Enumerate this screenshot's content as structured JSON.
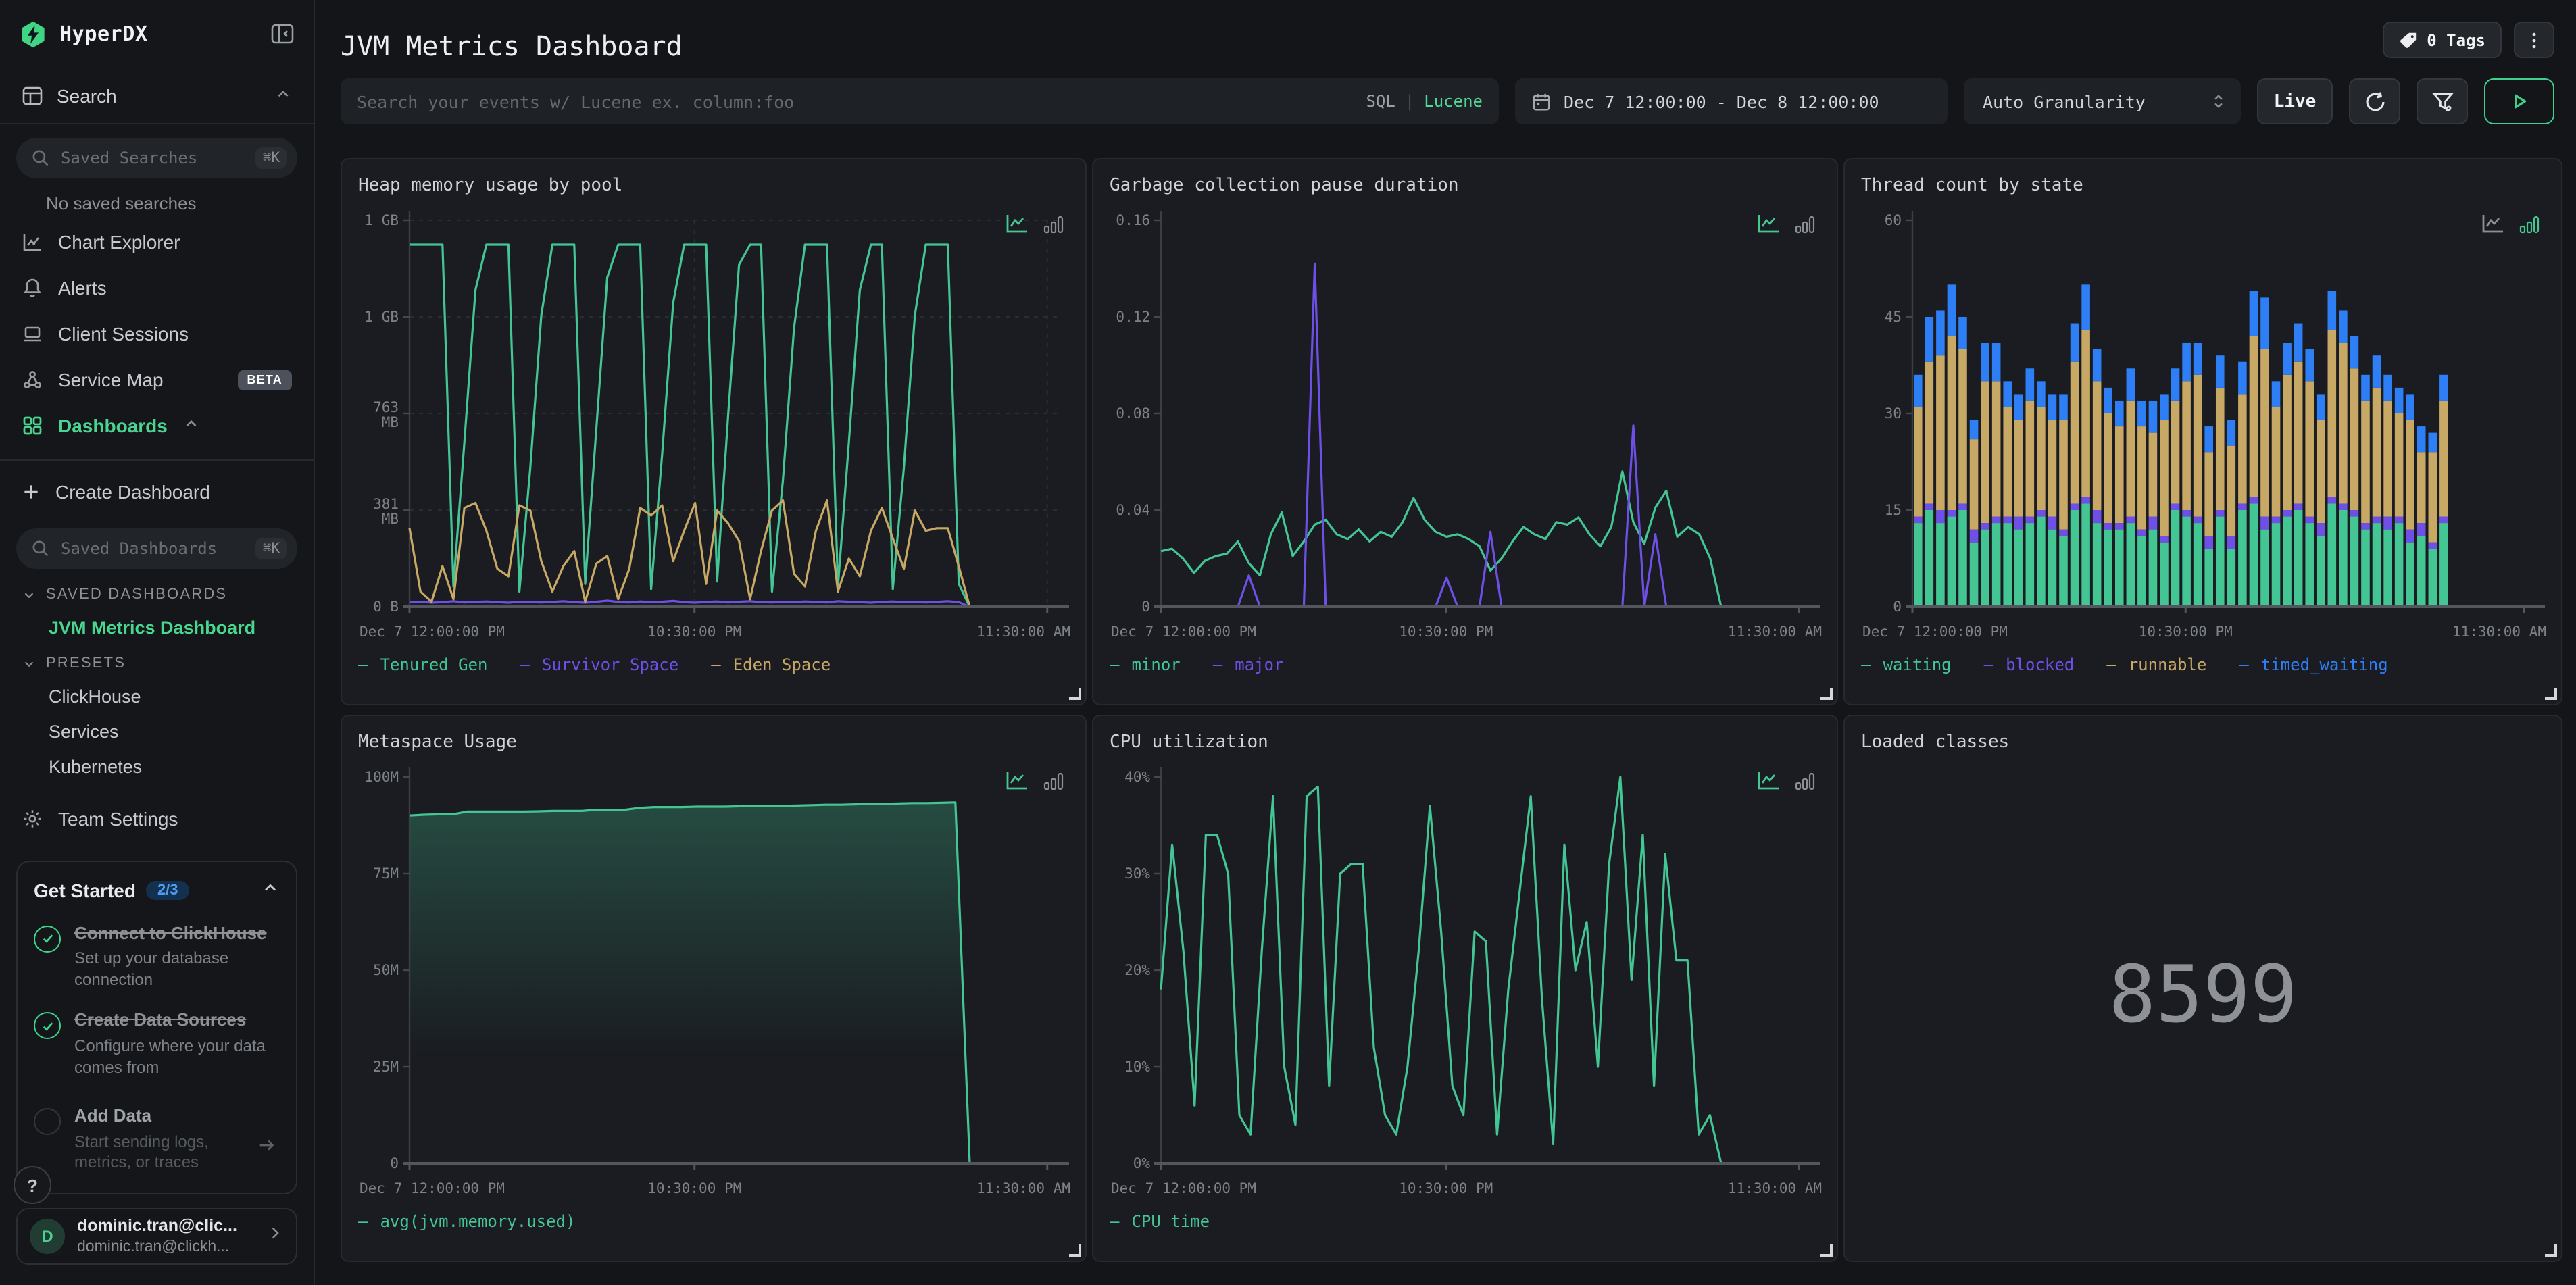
{
  "app": {
    "brand": "HyperDX"
  },
  "sidebar": {
    "search_label": "Search",
    "saved_searches": {
      "placeholder": "Saved Searches",
      "shortcut": "⌘K"
    },
    "no_saved_searches": "No saved searches",
    "nav": [
      {
        "label": "Chart Explorer"
      },
      {
        "label": "Alerts"
      },
      {
        "label": "Client Sessions"
      },
      {
        "label": "Service Map",
        "badge": "BETA"
      },
      {
        "label": "Dashboards"
      }
    ],
    "create_dashboard": "Create Dashboard",
    "saved_dashboards": {
      "placeholder": "Saved Dashboards",
      "shortcut": "⌘K"
    },
    "saved_section_label": "SAVED DASHBOARDS",
    "saved_items": [
      {
        "label": "JVM Metrics Dashboard"
      }
    ],
    "presets_label": "PRESETS",
    "preset_items": [
      {
        "label": "ClickHouse"
      },
      {
        "label": "Services"
      },
      {
        "label": "Kubernetes"
      }
    ],
    "team_settings": "Team Settings",
    "get_started": {
      "title": "Get Started",
      "progress": "2/3",
      "steps": [
        {
          "title": "Connect to ClickHouse",
          "subtitle": "Set up your database connection",
          "done": true
        },
        {
          "title": "Create Data Sources",
          "subtitle": "Configure where your data comes from",
          "done": true
        },
        {
          "title": "Add Data",
          "subtitle": "Start sending logs, metrics, or traces",
          "done": false
        }
      ]
    },
    "help_label": "?",
    "user": {
      "initial": "D",
      "name": "dominic.tran@clic...",
      "email": "dominic.tran@clickh..."
    }
  },
  "header": {
    "title": "JVM Metrics Dashboard",
    "tags_label": "0 Tags"
  },
  "toolbar": {
    "search_placeholder": "Search your events w/ Lucene ex. column:foo",
    "sql_label": "SQL",
    "divider": "|",
    "lucene_label": "Lucene",
    "date_range": "Dec 7 12:00:00 - Dec 8 12:00:00",
    "granularity": "Auto Granularity",
    "live_label": "Live"
  },
  "time_axis": [
    {
      "f": 0,
      "label": "Dec 7 12:00:00 PM",
      "anchor": "start"
    },
    {
      "f": 0.4375,
      "label": "10:30:00 PM",
      "anchor": "middle"
    },
    {
      "f": 0.979,
      "label": "11:30:00 AM",
      "anchor": "end"
    }
  ],
  "colors": {
    "green": "#43c594",
    "purple": "#6e50e6",
    "tan": "#c7a865",
    "blue": "#2e7ef5",
    "accent": "#45c78f",
    "icon_inactive": "#8b9096"
  },
  "chart_data": [
    {
      "type": "line",
      "mode": "line",
      "title": "Heap memory usage by pool",
      "unit": "bytes",
      "ymax": 1526,
      "grid": true,
      "x_end": 0.86,
      "yticks": [
        {
          "v": 1526,
          "label": "1 GB"
        },
        {
          "v": 1144,
          "label": "1 GB"
        },
        {
          "v": 763,
          "label": "763\nMB"
        },
        {
          "v": 381,
          "label": "381\nMB"
        },
        {
          "v": 0,
          "label": "0 B"
        }
      ],
      "series": [
        {
          "name": "Tenured Gen",
          "color": "#43c594",
          "tail0": false,
          "values": [
            1430,
            1430,
            1430,
            1430,
            80,
            650,
            1250,
            1430,
            1430,
            1430,
            60,
            550,
            1150,
            1430,
            1430,
            1430,
            90,
            700,
            1300,
            1430,
            1430,
            1430,
            70,
            600,
            1200,
            1430,
            1430,
            1430,
            100,
            750,
            1350,
            1430,
            1430,
            60,
            500,
            1100,
            1430,
            1430,
            1430,
            80,
            650,
            1250,
            1430,
            1430,
            70,
            550,
            1150,
            1430,
            1430,
            1430,
            90,
            0
          ]
        },
        {
          "name": "Survivor Space",
          "color": "#6e50e6",
          "tail0": true,
          "values": [
            18,
            20,
            16,
            18,
            22,
            17,
            19,
            21,
            18,
            16,
            20,
            18,
            17,
            19,
            22,
            18,
            16,
            20,
            24,
            19,
            17,
            21,
            18,
            20,
            23,
            18,
            16,
            19,
            21,
            17,
            20,
            22,
            18,
            17,
            20,
            18,
            21,
            19,
            17,
            22,
            20,
            18,
            16,
            19,
            21,
            18,
            20,
            17,
            19,
            22,
            18,
            0
          ]
        },
        {
          "name": "Eden Space",
          "color": "#c7a865",
          "tail0": true,
          "values": [
            310,
            60,
            20,
            160,
            30,
            390,
            410,
            300,
            150,
            120,
            400,
            380,
            180,
            60,
            160,
            220,
            20,
            170,
            200,
            30,
            150,
            390,
            360,
            400,
            180,
            300,
            410,
            90,
            380,
            330,
            260,
            30,
            220,
            380,
            420,
            130,
            80,
            300,
            420,
            60,
            190,
            120,
            300,
            390,
            270,
            150,
            380,
            300,
            310,
            310,
            160,
            0
          ]
        }
      ]
    },
    {
      "type": "line",
      "mode": "line",
      "title": "Garbage collection pause duration",
      "unit": "seconds",
      "ymax": 0.16,
      "grid": false,
      "x_end": 0.86,
      "yticks": [
        {
          "v": 0.16,
          "label": "0.16"
        },
        {
          "v": 0.12,
          "label": "0.12"
        },
        {
          "v": 0.08,
          "label": "0.08"
        },
        {
          "v": 0.04,
          "label": "0.04"
        },
        {
          "v": 0,
          "label": "0"
        }
      ],
      "series": [
        {
          "name": "minor",
          "color": "#43c594",
          "tail0": true,
          "values": [
            0.023,
            0.024,
            0.02,
            0.014,
            0.019,
            0.021,
            0.022,
            0.027,
            0.018,
            0.013,
            0.03,
            0.039,
            0.021,
            0.027,
            0.034,
            0.036,
            0.03,
            0.028,
            0.032,
            0.027,
            0.031,
            0.029,
            0.035,
            0.045,
            0.036,
            0.031,
            0.029,
            0.03,
            0.028,
            0.025,
            0.015,
            0.02,
            0.027,
            0.033,
            0.03,
            0.028,
            0.035,
            0.034,
            0.037,
            0.03,
            0.025,
            0.033,
            0.056,
            0.035,
            0.026,
            0.041,
            0.048,
            0.029,
            0.033,
            0.03,
            0.02,
            0
          ]
        },
        {
          "name": "major",
          "color": "#6e50e6",
          "tail0": true,
          "values": [
            0,
            0,
            0,
            0,
            0,
            0,
            0,
            0,
            0.013,
            0,
            0,
            0,
            0,
            0,
            0.142,
            0,
            0,
            0,
            0,
            0,
            0,
            0,
            0,
            0,
            0,
            0,
            0.012,
            0,
            0,
            0,
            0.031,
            0,
            0,
            0,
            0,
            0,
            0,
            0,
            0,
            0,
            0,
            0,
            0,
            0.075,
            0,
            0.03,
            0,
            0,
            0,
            0,
            0,
            0
          ]
        }
      ]
    },
    {
      "type": "bar",
      "mode": "bar",
      "title": "Thread count by state",
      "unit": "threads",
      "ymax": 60,
      "grid": false,
      "x_end": 0.86,
      "yticks": [
        {
          "v": 60,
          "label": "60"
        },
        {
          "v": 45,
          "label": "45"
        },
        {
          "v": 30,
          "label": "30"
        },
        {
          "v": 15,
          "label": "15"
        },
        {
          "v": 0,
          "label": "0"
        }
      ],
      "series": [
        {
          "name": "waiting",
          "color": "#43c594",
          "values": [
            13,
            15,
            13,
            14,
            15,
            10,
            12,
            13,
            13,
            12,
            13,
            14,
            12,
            11,
            15,
            16,
            13,
            12,
            12,
            13,
            11,
            12,
            10,
            15,
            14,
            13,
            9,
            14,
            9,
            15,
            16,
            12,
            13,
            14,
            15,
            13,
            11,
            16,
            15,
            14,
            12,
            13,
            12,
            13,
            10,
            11,
            9,
            13
          ]
        },
        {
          "name": "blocked",
          "color": "#6e50e6",
          "values": [
            1,
            1,
            2,
            1,
            1,
            2,
            1,
            1,
            1,
            2,
            1,
            1,
            2,
            1,
            1,
            1,
            2,
            1,
            1,
            1,
            1,
            2,
            1,
            1,
            1,
            1,
            2,
            1,
            2,
            1,
            1,
            2,
            1,
            1,
            1,
            1,
            2,
            1,
            1,
            1,
            1,
            1,
            2,
            1,
            2,
            2,
            1,
            1
          ]
        },
        {
          "name": "runnable",
          "color": "#c7a865",
          "values": [
            17,
            22,
            24,
            27,
            24,
            14,
            22,
            21,
            17,
            15,
            18,
            16,
            15,
            17,
            22,
            26,
            20,
            17,
            15,
            18,
            16,
            13,
            18,
            16,
            20,
            22,
            13,
            19,
            14,
            17,
            25,
            26,
            17,
            21,
            22,
            21,
            16,
            26,
            25,
            22,
            19,
            20,
            18,
            16,
            17,
            11,
            14,
            18
          ]
        },
        {
          "name": "timed_waiting",
          "color": "#2e7ef5",
          "values": [
            5,
            7,
            7,
            8,
            5,
            3,
            6,
            6,
            4,
            4,
            5,
            4,
            4,
            4,
            6,
            7,
            5,
            4,
            4,
            5,
            4,
            5,
            4,
            5,
            6,
            5,
            4,
            5,
            4,
            5,
            7,
            8,
            4,
            5,
            6,
            5,
            4,
            6,
            5,
            5,
            4,
            5,
            4,
            4,
            4,
            4,
            3,
            4
          ]
        }
      ]
    },
    {
      "type": "line",
      "mode": "line",
      "title": "Metaspace Usage",
      "unit": "bytes",
      "ymax": 100,
      "grid": false,
      "x_end": 0.86,
      "yticks": [
        {
          "v": 100,
          "label": "100M"
        },
        {
          "v": 75,
          "label": "75M"
        },
        {
          "v": 50,
          "label": "50M"
        },
        {
          "v": 25,
          "label": "25M"
        },
        {
          "v": 0,
          "label": "0"
        }
      ],
      "series": [
        {
          "name": "avg(jvm.memory.used)",
          "color": "#43c594",
          "tail0": true,
          "area": true,
          "values": [
            90,
            90.2,
            90.3,
            90.3,
            91,
            91,
            91,
            91,
            91,
            91.1,
            91.2,
            91.2,
            91.2,
            91.5,
            91.5,
            91.5,
            92,
            92.2,
            92.2,
            92.2,
            92.3,
            92.3,
            92.3,
            92.4,
            92.4,
            92.5,
            92.5,
            92.6,
            92.7,
            92.8,
            92.8,
            92.9,
            93,
            93,
            93.1,
            93.2,
            93.2,
            93.3,
            93.4,
            0
          ]
        }
      ]
    },
    {
      "type": "line",
      "mode": "line",
      "title": "CPU utilization",
      "unit": "percent",
      "ymax": 40,
      "grid": false,
      "x_end": 0.86,
      "yticks": [
        {
          "v": 40,
          "label": "40%"
        },
        {
          "v": 30,
          "label": "30%"
        },
        {
          "v": 20,
          "label": "20%"
        },
        {
          "v": 10,
          "label": "10%"
        },
        {
          "v": 0,
          "label": "0%"
        }
      ],
      "series": [
        {
          "name": "CPU time",
          "color": "#43c594",
          "tail0": true,
          "values": [
            18,
            33,
            22,
            6,
            34,
            34,
            30,
            5,
            3,
            22,
            38,
            10,
            4,
            38,
            39,
            8,
            30,
            31,
            31,
            12,
            5,
            3,
            10,
            22,
            37,
            24,
            8,
            5,
            24,
            23,
            3,
            18,
            28,
            38,
            17,
            2,
            33,
            20,
            25,
            10,
            31,
            40,
            19,
            34,
            8,
            32,
            21,
            21,
            3,
            5,
            0
          ]
        }
      ]
    },
    {
      "type": "number",
      "mode": "number",
      "title": "Loaded classes",
      "value": "8599"
    }
  ]
}
